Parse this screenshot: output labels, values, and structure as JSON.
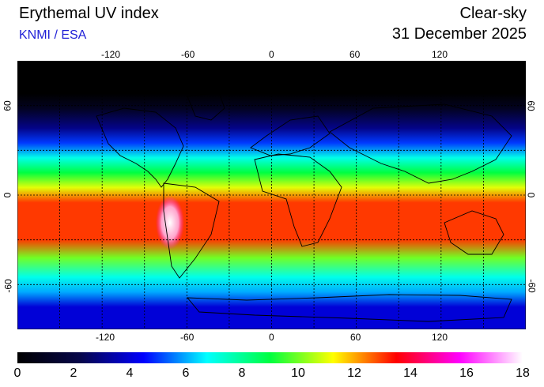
{
  "header": {
    "title": "Erythemal UV index",
    "credit": "KNMI / ESA",
    "mode": "Clear-sky",
    "date": "31 December 2025"
  },
  "map": {
    "projection": "equirectangular",
    "lon_range": [
      -180,
      180
    ],
    "lat_range": [
      -90,
      90
    ],
    "grid": "dotted, every 30 degrees",
    "lon_tick_labels": [
      "-120",
      "-60",
      "0",
      "60",
      "120"
    ],
    "lat_tick_labels": [
      "60",
      "0",
      "-60"
    ]
  },
  "colorbar": {
    "range": [
      0,
      18
    ],
    "labels": [
      "0",
      "2",
      "4",
      "6",
      "8",
      "10",
      "12",
      "14",
      "16",
      "18"
    ],
    "colors": [
      "#000000",
      "#06064a",
      "#0000ff",
      "#00ffff",
      "#00ff40",
      "#ffff00",
      "#ff0000",
      "#ff00ff",
      "#ffffff"
    ]
  },
  "field": {
    "uv_by_latitude": [
      {
        "lat": 90,
        "uv": 0
      },
      {
        "lat": 68,
        "uv": 0
      },
      {
        "lat": 58,
        "uv": 1
      },
      {
        "lat": 45,
        "uv": 3
      },
      {
        "lat": 35,
        "uv": 5
      },
      {
        "lat": 25,
        "uv": 7
      },
      {
        "lat": 15,
        "uv": 9
      },
      {
        "lat": 5,
        "uv": 11
      },
      {
        "lat": -5,
        "uv": 13
      },
      {
        "lat": -18,
        "uv": 13
      },
      {
        "lat": -30,
        "uv": 13
      },
      {
        "lat": -42,
        "uv": 10
      },
      {
        "lat": -55,
        "uv": 7
      },
      {
        "lat": -65,
        "uv": 6
      },
      {
        "lat": -75,
        "uv": 4
      },
      {
        "lat": -90,
        "uv": 4
      }
    ],
    "andes_peak_uv": 18
  }
}
